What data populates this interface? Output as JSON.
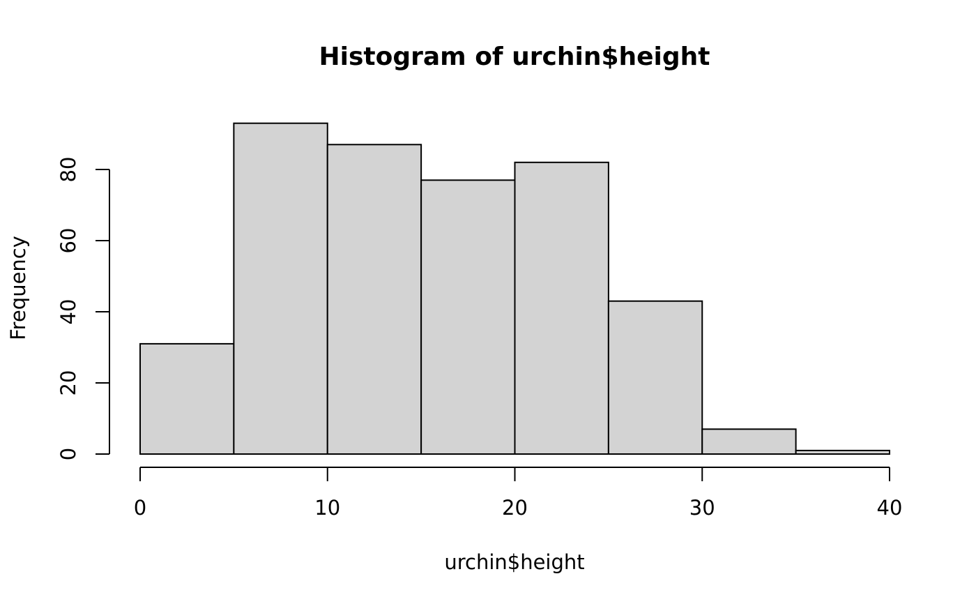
{
  "chart_data": {
    "type": "bar",
    "title": "Histogram of urchin$height",
    "xlabel": "urchin$height",
    "ylabel": "Frequency",
    "bins": [
      {
        "from": 0,
        "to": 5,
        "count": 31
      },
      {
        "from": 5,
        "to": 10,
        "count": 93
      },
      {
        "from": 10,
        "to": 15,
        "count": 87
      },
      {
        "from": 15,
        "to": 20,
        "count": 77
      },
      {
        "from": 20,
        "to": 25,
        "count": 82
      },
      {
        "from": 25,
        "to": 30,
        "count": 43
      },
      {
        "from": 30,
        "to": 35,
        "count": 7
      },
      {
        "from": 35,
        "to": 40,
        "count": 1
      }
    ],
    "xlim": [
      0,
      40
    ],
    "x_ticks": [
      0,
      10,
      20,
      30,
      40
    ],
    "y_ticks": [
      0,
      20,
      40,
      60,
      80
    ],
    "grid": false,
    "legend": "none",
    "bar_fill": "#d3d3d3",
    "bar_stroke": "#000000"
  }
}
